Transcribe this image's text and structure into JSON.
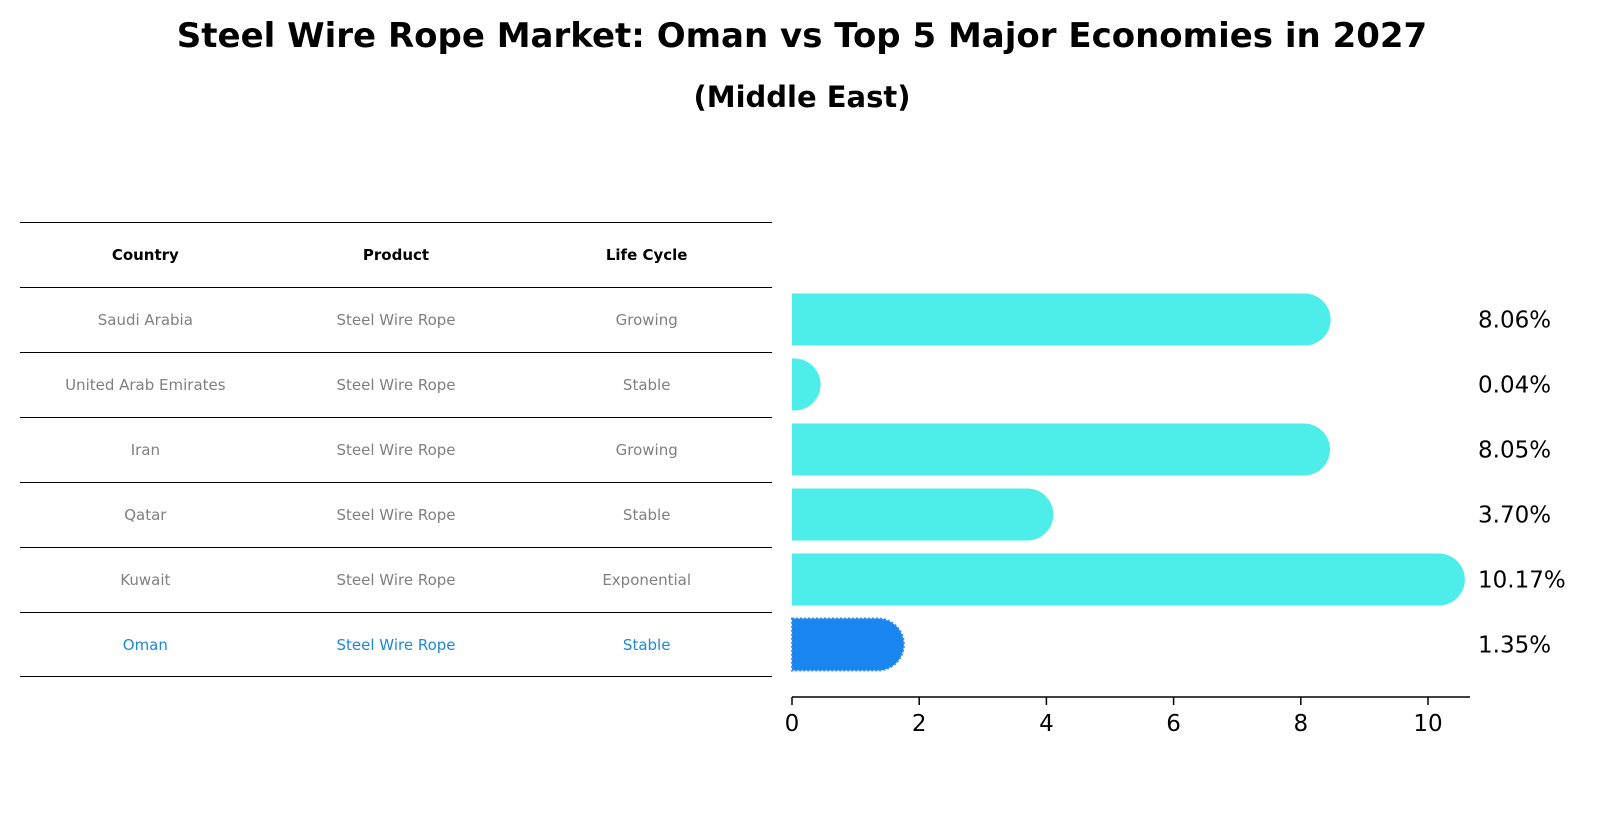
{
  "title": "Steel Wire Rope Market: Oman vs Top 5 Major Economies in 2027",
  "subtitle": "(Middle East)",
  "table": {
    "headers": [
      "Country",
      "Product",
      "Life Cycle"
    ],
    "rows": [
      [
        "Saudi Arabia",
        "Steel Wire Rope",
        "Growing"
      ],
      [
        "United Arab Emirates",
        "Steel Wire Rope",
        "Stable"
      ],
      [
        "Iran",
        "Steel Wire Rope",
        "Growing"
      ],
      [
        "Qatar",
        "Steel Wire Rope",
        "Stable"
      ],
      [
        "Kuwait",
        "Steel Wire Rope",
        "Exponential"
      ],
      [
        "Oman",
        "Steel Wire Rope",
        "Stable"
      ]
    ],
    "highlight_row": 5,
    "highlight_color": "#1e88d6"
  },
  "chart_data": {
    "type": "bar",
    "orientation": "horizontal",
    "categories": [
      "Saudi Arabia",
      "United Arab Emirates",
      "Iran",
      "Qatar",
      "Kuwait",
      "Oman"
    ],
    "values": [
      8.06,
      0.04,
      8.05,
      3.7,
      10.17,
      1.35
    ],
    "value_labels": [
      "8.06%",
      "0.04%",
      "8.05%",
      "3.70%",
      "10.17%",
      "1.35%"
    ],
    "xlim": [
      0,
      10.7
    ],
    "xticks": [
      0,
      2,
      4,
      6,
      8,
      10
    ],
    "xlabel": "",
    "ylabel": "",
    "grid": false,
    "colors": {
      "default": "#4deeea",
      "highlight": "#1a86f0"
    },
    "highlight_index": 5
  }
}
